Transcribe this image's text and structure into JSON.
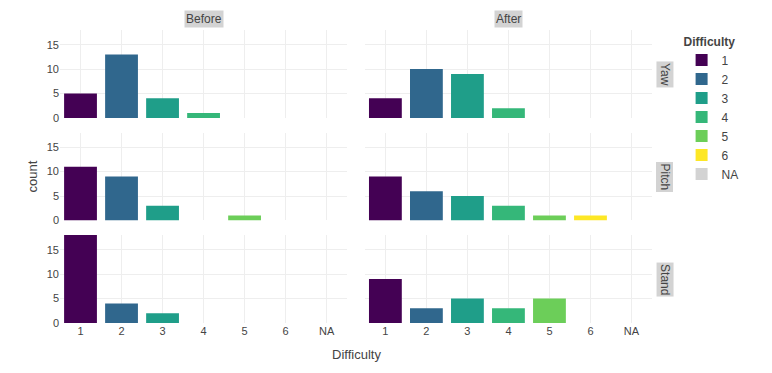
{
  "chart_data": [
    {
      "type": "bar",
      "title": "Before",
      "categories": [
        "1",
        "2",
        "3",
        "4",
        "5",
        "6",
        "NA"
      ],
      "values": [
        5,
        13,
        4,
        1,
        0,
        0,
        0
      ],
      "colors": [
        "#440154",
        "#30678D",
        "#1F9E89",
        "#35B779",
        "#6CCE59",
        "#FDE725",
        "#D3D3D3"
      ],
      "ylim": [
        0,
        18
      ],
      "yticks": [
        0,
        5,
        10,
        15
      ],
      "grid": true,
      "tick_labels": "y"
    },
    {
      "type": "bar",
      "title": "After",
      "annotations": [
        "Yaw"
      ],
      "categories": [
        "1",
        "2",
        "3",
        "4",
        "5",
        "6",
        "NA"
      ],
      "values": [
        4,
        10,
        9,
        2,
        0,
        0,
        0
      ],
      "colors": [
        "#440154",
        "#30678D",
        "#1F9E89",
        "#35B779",
        "#6CCE59",
        "#FDE725",
        "#D3D3D3"
      ],
      "ylim": [
        0,
        18
      ],
      "yticks": [
        0,
        5,
        10,
        15
      ],
      "grid": true,
      "tick_labels": false,
      "legend": "right",
      "legend_title": "Difficulty"
    },
    {
      "type": "bar",
      "ylabel": "count",
      "categories": [
        "1",
        "2",
        "3",
        "4",
        "5",
        "6",
        "NA"
      ],
      "values": [
        11,
        9,
        3,
        0,
        1,
        0,
        0
      ],
      "colors": [
        "#440154",
        "#30678D",
        "#1F9E89",
        "#35B779",
        "#6CCE59",
        "#FDE725",
        "#D3D3D3"
      ],
      "ylim": [
        0,
        18
      ],
      "yticks": [
        0,
        5,
        10,
        15
      ],
      "grid": true,
      "tick_labels": "y"
    },
    {
      "type": "bar",
      "annotations": [
        "Pitch"
      ],
      "categories": [
        "1",
        "2",
        "3",
        "4",
        "5",
        "6",
        "NA"
      ],
      "values": [
        9,
        6,
        5,
        3,
        1,
        1,
        0
      ],
      "colors": [
        "#440154",
        "#30678D",
        "#1F9E89",
        "#35B779",
        "#6CCE59",
        "#FDE725",
        "#D3D3D3"
      ],
      "ylim": [
        0,
        18
      ],
      "yticks": [
        0,
        5,
        10,
        15
      ],
      "grid": true,
      "tick_labels": false
    },
    {
      "type": "bar",
      "xlabel": "Difficulty",
      "categories": [
        "1",
        "2",
        "3",
        "4",
        "5",
        "6",
        "NA"
      ],
      "values": [
        18,
        4,
        2,
        0,
        0,
        0,
        0
      ],
      "colors": [
        "#440154",
        "#30678D",
        "#1F9E89",
        "#35B779",
        "#6CCE59",
        "#FDE725",
        "#D3D3D3"
      ],
      "ylim": [
        0,
        18
      ],
      "yticks": [
        0,
        5,
        10,
        15
      ],
      "grid": true
    },
    {
      "type": "bar",
      "annotations": [
        "Stand"
      ],
      "categories": [
        "1",
        "2",
        "3",
        "4",
        "5",
        "6",
        "NA"
      ],
      "values": [
        9,
        3,
        5,
        3,
        5,
        0,
        0
      ],
      "colors": [
        "#440154",
        "#30678D",
        "#1F9E89",
        "#35B779",
        "#6CCE59",
        "#FDE725",
        "#D3D3D3"
      ],
      "ylim": [
        0,
        18
      ],
      "yticks": [
        0,
        5,
        10,
        15
      ],
      "grid": true,
      "tick_labels": "x"
    }
  ]
}
